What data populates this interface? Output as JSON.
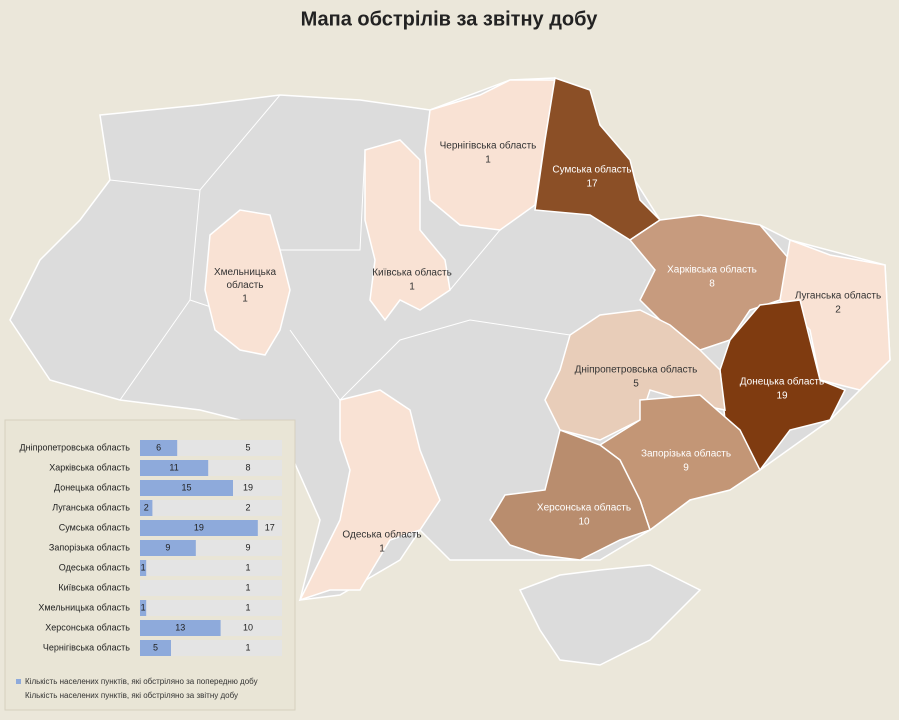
{
  "title": "Мапа обстрілів за звітну добу",
  "regions": [
    {
      "name": "Чернігівська область",
      "value": 1,
      "color": "#f9e2d4"
    },
    {
      "name": "Сумська область",
      "value": 17,
      "color": "#8b4f26"
    },
    {
      "name": "Харківська область",
      "value": 8,
      "color": "#c79b7e"
    },
    {
      "name": "Луганська область",
      "value": 2,
      "color": "#f9e2d4"
    },
    {
      "name": "Донецька область",
      "value": 19,
      "color": "#7f3b10"
    },
    {
      "name": "Дніпропетровська область",
      "value": 5,
      "color": "#e8cdb9"
    },
    {
      "name": "Запорізька область",
      "value": 9,
      "color": "#c39676"
    },
    {
      "name": "Херсонська область",
      "value": 10,
      "color": "#b98d6e"
    },
    {
      "name": "Одеська область",
      "value": 1,
      "color": "#f9e2d4"
    },
    {
      "name": "Київська область",
      "value": 1,
      "color": "#f9e2d4"
    },
    {
      "name": "Хмельницька область",
      "value": 1,
      "color": "#f9e2d4"
    }
  ],
  "chart_data": {
    "type": "bar",
    "categories": [
      "Дніпропетровська область",
      "Харківська область",
      "Донецька область",
      "Луганська область",
      "Сумська область",
      "Запорізька область",
      "Одеська область",
      "Київська область",
      "Хмельницька область",
      "Херсонська область",
      "Чернігівська область"
    ],
    "series": [
      {
        "name": "Кількість населених пунктів, які обстріляно за попередню добу",
        "color": "#8eaadb",
        "values": [
          6,
          11,
          15,
          2,
          19,
          9,
          1,
          null,
          1,
          13,
          5
        ]
      },
      {
        "name": "Кількість населених пунктів, які обстріляно за звітну добу",
        "color": "#e4e4e4",
        "values": [
          5,
          8,
          19,
          2,
          17,
          9,
          1,
          1,
          1,
          10,
          1
        ]
      }
    ]
  }
}
